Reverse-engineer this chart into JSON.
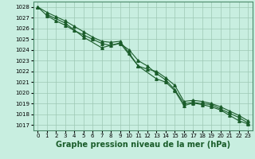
{
  "xlabel": "Graphe pression niveau de la mer (hPa)",
  "xlim": [
    -0.5,
    23.5
  ],
  "ylim": [
    1016.5,
    1028.5
  ],
  "yticks": [
    1017,
    1018,
    1019,
    1020,
    1021,
    1022,
    1023,
    1024,
    1025,
    1026,
    1027,
    1028
  ],
  "xticks": [
    0,
    1,
    2,
    3,
    4,
    5,
    6,
    7,
    8,
    9,
    10,
    11,
    12,
    13,
    14,
    15,
    16,
    17,
    18,
    19,
    20,
    21,
    22,
    23
  ],
  "background_color": "#c8eee0",
  "grid_color": "#9dc8b4",
  "line_color": "#1a5c2a",
  "line1_x": [
    0,
    1,
    2,
    3,
    4,
    5,
    6,
    7,
    8,
    9,
    10,
    11,
    12,
    13,
    14,
    15,
    16,
    17,
    18,
    19,
    20,
    21,
    22,
    23
  ],
  "line1_y": [
    1028.0,
    1027.2,
    1026.7,
    1026.3,
    1025.8,
    1025.4,
    1025.0,
    1024.6,
    1024.4,
    1024.6,
    1024.0,
    1023.0,
    1022.5,
    1021.8,
    1021.2,
    1020.3,
    1019.0,
    1019.1,
    1019.0,
    1018.9,
    1018.5,
    1018.1,
    1017.7,
    1017.2
  ],
  "line2_x": [
    0,
    1,
    2,
    3,
    4,
    5,
    6,
    7,
    8,
    9,
    10,
    11,
    12,
    13,
    14,
    15,
    16,
    17,
    18,
    19,
    20,
    21,
    22,
    23
  ],
  "line2_y": [
    1028.0,
    1027.5,
    1027.1,
    1026.7,
    1026.2,
    1025.7,
    1025.2,
    1024.8,
    1024.7,
    1024.8,
    1023.7,
    1022.5,
    1022.2,
    1022.0,
    1021.4,
    1020.7,
    1019.2,
    1019.3,
    1019.2,
    1019.0,
    1018.7,
    1018.3,
    1017.9,
    1017.4
  ],
  "line3_x": [
    1,
    3,
    5,
    7,
    9,
    11,
    13,
    14,
    15,
    16,
    17,
    18,
    19,
    20,
    21,
    22,
    23
  ],
  "line3_y": [
    1027.3,
    1026.5,
    1025.2,
    1024.2,
    1024.65,
    1022.5,
    1021.3,
    1021.0,
    1020.2,
    1018.8,
    1019.05,
    1018.9,
    1018.7,
    1018.4,
    1017.9,
    1017.4,
    1017.1
  ],
  "marker": "^",
  "marker_size": 2.5,
  "linewidth": 0.8,
  "tick_fontsize": 5.0,
  "xlabel_fontsize": 7.0,
  "xlabel_fontweight": "bold"
}
